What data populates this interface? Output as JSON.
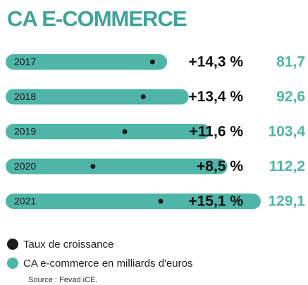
{
  "chart_data": {
    "type": "bar",
    "title": "CA E-COMMERCE",
    "categories": [
      "2017",
      "2018",
      "2019",
      "2020",
      "2021"
    ],
    "series": [
      {
        "name": "Taux de croissance",
        "color": "#1a1a1a",
        "values": [
          14.3,
          13.4,
          11.6,
          8.5,
          15.1
        ],
        "value_labels": [
          "+14,3 %",
          "+13,4 %",
          "+11,6 %",
          "+8,5 %",
          "+15,1 %"
        ]
      },
      {
        "name": "CA e-commerce en milliards d'euros",
        "color": "#4fb5a8",
        "values": [
          81.7,
          92.6,
          103.4,
          112.2,
          129.1
        ],
        "value_labels": [
          "81,7",
          "92,6",
          "103,4",
          "112,2",
          "129,1"
        ]
      }
    ],
    "source": "Source : Fevad iCE."
  }
}
